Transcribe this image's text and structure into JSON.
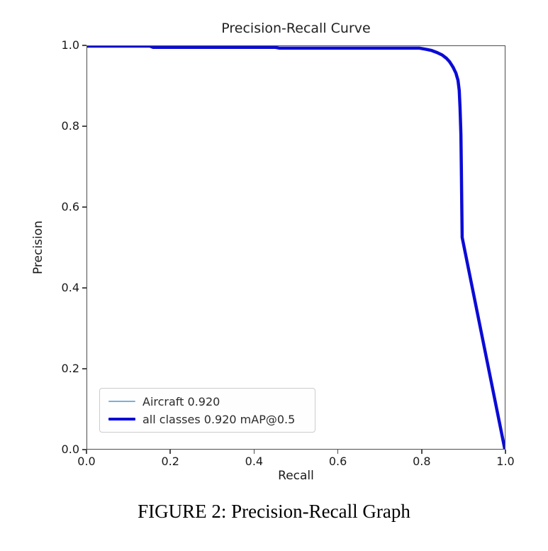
{
  "figure": {
    "caption": "FIGURE 2: Precision-Recall Graph"
  },
  "chart_data": {
    "type": "line",
    "title": "Precision-Recall Curve",
    "xlabel": "Recall",
    "ylabel": "Precision",
    "xlim": [
      0,
      1
    ],
    "ylim": [
      0,
      1
    ],
    "x_ticks": [
      "0.0",
      "0.2",
      "0.4",
      "0.6",
      "0.8",
      "1.0"
    ],
    "y_ticks": [
      "0.0",
      "0.2",
      "0.4",
      "0.6",
      "0.8",
      "1.0"
    ],
    "grid": false,
    "legend_position": "lower-left",
    "series": [
      {
        "name": "Aircraft 0.920",
        "color": "#79b1d8",
        "line_width": 2,
        "points": [
          [
            0.0,
            1.0
          ],
          [
            0.15,
            1.0
          ],
          [
            0.158,
            0.997
          ],
          [
            0.45,
            0.997
          ],
          [
            0.46,
            0.995
          ],
          [
            0.795,
            0.995
          ],
          [
            0.812,
            0.992
          ],
          [
            0.825,
            0.989
          ],
          [
            0.838,
            0.984
          ],
          [
            0.85,
            0.978
          ],
          [
            0.86,
            0.97
          ],
          [
            0.868,
            0.961
          ],
          [
            0.876,
            0.948
          ],
          [
            0.883,
            0.933
          ],
          [
            0.888,
            0.915
          ],
          [
            0.891,
            0.89
          ],
          [
            0.893,
            0.845
          ],
          [
            0.895,
            0.78
          ],
          [
            0.896,
            0.7
          ],
          [
            0.897,
            0.61
          ],
          [
            0.898,
            0.525
          ],
          [
            1.0,
            0.0
          ]
        ]
      },
      {
        "name": "all classes 0.920 mAP@0.5",
        "color": "#0b0bd6",
        "line_width": 4.5,
        "points": [
          [
            0.0,
            1.0
          ],
          [
            0.15,
            1.0
          ],
          [
            0.158,
            0.997
          ],
          [
            0.45,
            0.997
          ],
          [
            0.46,
            0.995
          ],
          [
            0.795,
            0.995
          ],
          [
            0.812,
            0.992
          ],
          [
            0.825,
            0.989
          ],
          [
            0.838,
            0.984
          ],
          [
            0.85,
            0.978
          ],
          [
            0.86,
            0.97
          ],
          [
            0.868,
            0.961
          ],
          [
            0.876,
            0.948
          ],
          [
            0.883,
            0.933
          ],
          [
            0.888,
            0.915
          ],
          [
            0.891,
            0.89
          ],
          [
            0.893,
            0.845
          ],
          [
            0.895,
            0.78
          ],
          [
            0.896,
            0.7
          ],
          [
            0.897,
            0.61
          ],
          [
            0.898,
            0.525
          ],
          [
            1.0,
            0.0
          ]
        ]
      }
    ]
  }
}
